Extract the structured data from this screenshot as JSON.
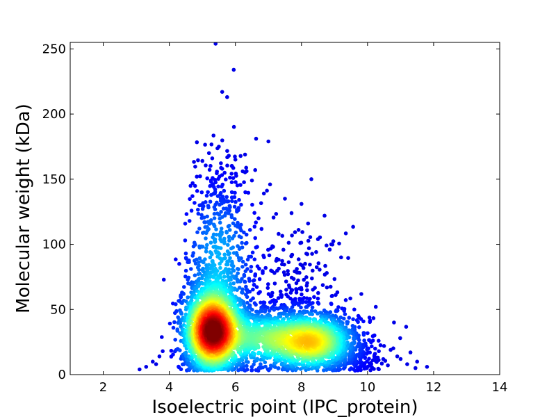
{
  "chart_data": {
    "type": "scatter",
    "title": "",
    "xlabel": "Isoelectric point (IPC_protein)",
    "ylabel": "Molecular weight (kDa)",
    "xlim": [
      1,
      14
    ],
    "ylim": [
      0,
      255
    ],
    "xticks": [
      2,
      4,
      6,
      8,
      10,
      12,
      14
    ],
    "yticks": [
      0,
      50,
      100,
      150,
      200,
      250
    ],
    "grid": false,
    "legend": "none",
    "colormap": "jet (point density)",
    "colors": {
      "low_density": "#00008f",
      "mid_density": "#00ffff",
      "high_density": "#ffff00",
      "peak_density": "#7f0000"
    },
    "density_peaks": [
      {
        "x": 5.3,
        "y": 33
      },
      {
        "x": 8.3,
        "y": 25
      }
    ],
    "outliers": [
      {
        "x": 5.4,
        "y": 254
      },
      {
        "x": 5.95,
        "y": 234
      },
      {
        "x": 5.6,
        "y": 217
      },
      {
        "x": 5.75,
        "y": 213
      },
      {
        "x": 7.0,
        "y": 179
      },
      {
        "x": 5.5,
        "y": 175
      },
      {
        "x": 5.2,
        "y": 170
      },
      {
        "x": 5.3,
        "y": 166
      },
      {
        "x": 5.8,
        "y": 168
      },
      {
        "x": 6.0,
        "y": 165
      },
      {
        "x": 5.0,
        "y": 164
      },
      {
        "x": 6.6,
        "y": 157
      },
      {
        "x": 5.6,
        "y": 158
      },
      {
        "x": 5.9,
        "y": 160
      },
      {
        "x": 8.3,
        "y": 150
      },
      {
        "x": 6.5,
        "y": 149
      },
      {
        "x": 7.05,
        "y": 146
      },
      {
        "x": 6.3,
        "y": 140
      },
      {
        "x": 4.7,
        "y": 137
      },
      {
        "x": 7.5,
        "y": 135
      },
      {
        "x": 8.0,
        "y": 131
      },
      {
        "x": 8.7,
        "y": 122
      },
      {
        "x": 7.7,
        "y": 124
      },
      {
        "x": 10.25,
        "y": 52
      },
      {
        "x": 10.8,
        "y": 40
      },
      {
        "x": 10.2,
        "y": 30
      },
      {
        "x": 10.5,
        "y": 22
      },
      {
        "x": 10.7,
        "y": 19
      },
      {
        "x": 11.3,
        "y": 17
      },
      {
        "x": 10.9,
        "y": 14
      },
      {
        "x": 11.0,
        "y": 12
      },
      {
        "x": 11.5,
        "y": 10
      },
      {
        "x": 11.2,
        "y": 8
      },
      {
        "x": 11.8,
        "y": 6
      },
      {
        "x": 11.45,
        "y": 5
      },
      {
        "x": 3.1,
        "y": 4
      },
      {
        "x": 3.3,
        "y": 6
      },
      {
        "x": 3.5,
        "y": 10
      },
      {
        "x": 3.6,
        "y": 8
      },
      {
        "x": 3.8,
        "y": 18
      },
      {
        "x": 3.7,
        "y": 14
      },
      {
        "x": 9.6,
        "y": 50
      },
      {
        "x": 9.2,
        "y": 90
      },
      {
        "x": 8.9,
        "y": 100
      },
      {
        "x": 8.5,
        "y": 104
      },
      {
        "x": 8.2,
        "y": 116
      },
      {
        "x": 6.7,
        "y": 120
      },
      {
        "x": 6.1,
        "y": 128
      },
      {
        "x": 4.5,
        "y": 93
      },
      {
        "x": 4.3,
        "y": 85
      }
    ]
  }
}
